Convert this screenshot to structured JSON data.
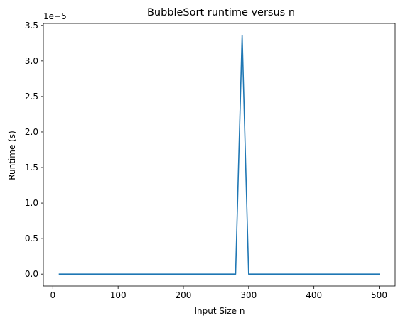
{
  "chart_data": {
    "type": "line",
    "title": "BubbleSort runtime versus n",
    "xlabel": "Input Size n",
    "ylabel": "Runtime (s)",
    "y_offset_text": "1e−5",
    "xlim": [
      -14.5,
      524.5
    ],
    "ylim": [
      -0.168,
      3.528
    ],
    "x_ticks": [
      0,
      100,
      200,
      300,
      400,
      500
    ],
    "y_ticks": [
      0.0,
      0.5,
      1.0,
      1.5,
      2.0,
      2.5,
      3.0,
      3.5
    ],
    "x_tick_labels": [
      "0",
      "100",
      "200",
      "300",
      "400",
      "500"
    ],
    "y_tick_labels": [
      "0.0",
      "0.5",
      "1.0",
      "1.5",
      "2.0",
      "2.5",
      "3.0",
      "3.5"
    ],
    "grid": false,
    "series": [
      {
        "color": "#1f77b4",
        "x": [
          10,
          20,
          30,
          40,
          50,
          60,
          70,
          80,
          90,
          100,
          110,
          120,
          130,
          140,
          150,
          160,
          170,
          180,
          190,
          200,
          210,
          220,
          230,
          240,
          250,
          260,
          270,
          280,
          290,
          300,
          310,
          320,
          330,
          340,
          350,
          360,
          370,
          380,
          390,
          400,
          410,
          420,
          430,
          440,
          450,
          460,
          470,
          480,
          490,
          500
        ],
        "y": [
          0,
          0,
          0,
          0,
          0,
          0,
          0,
          0,
          0,
          0,
          0,
          0,
          0,
          0,
          0,
          0,
          0,
          0,
          0,
          0,
          0,
          0,
          0,
          0,
          0,
          0,
          0,
          0,
          3.36,
          0,
          0,
          0,
          0,
          0,
          0,
          0,
          0,
          0,
          0,
          0,
          0,
          0,
          0,
          0,
          0,
          0,
          0,
          0,
          0,
          0
        ]
      }
    ]
  }
}
